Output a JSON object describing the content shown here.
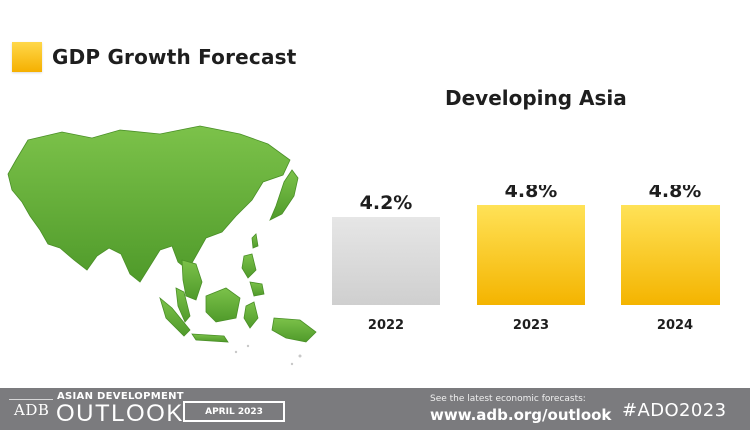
{
  "header": {
    "title": "GDP Growth Forecast"
  },
  "chart_data": {
    "type": "bar",
    "title": "Developing Asia",
    "categories": [
      "2022",
      "2023",
      "2024"
    ],
    "values": [
      4.2,
      4.8,
      4.8
    ],
    "value_labels": [
      "4.2%",
      "4.8%",
      "4.8%"
    ],
    "unit": "%",
    "bar_colors": [
      "#dcdcdc",
      "#fbcd20",
      "#fbcd20"
    ],
    "grid": false,
    "legend": "none"
  },
  "footer": {
    "logo": "ADB",
    "brand_small": "ASIAN DEVELOPMENT",
    "brand_large": "OUTLOOK",
    "edition": "APRIL 2023",
    "cta_text": "See the latest economic forecasts:",
    "cta_url": "www.adb.org/outlook",
    "hashtag": "#ADO2023"
  },
  "colors": {
    "map": "#6bb43a",
    "accent": "#fbcd20",
    "footer_bg": "#7b7b7e"
  }
}
